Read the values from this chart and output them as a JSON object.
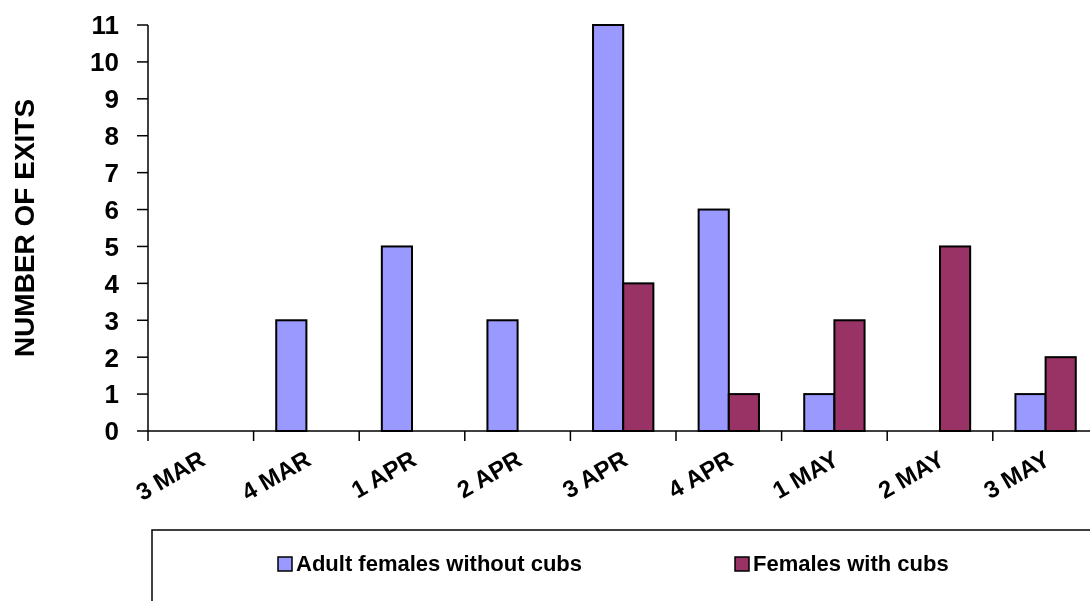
{
  "chart_data": {
    "type": "bar",
    "ylabel": "NUMBER OF EXITS",
    "categories": [
      "3 MAR",
      "4 MAR",
      "1 APR",
      "2 APR",
      "3 APR",
      "4 APR",
      "1 MAY",
      "2 MAY",
      "3 MAY"
    ],
    "series": [
      {
        "name": "Adult females without cubs",
        "color": "#9999ff",
        "values": [
          0,
          3,
          5,
          3,
          11,
          6,
          1,
          0,
          1
        ]
      },
      {
        "name": "Females with cubs",
        "color": "#993366",
        "values": [
          0,
          0,
          0,
          0,
          4,
          1,
          3,
          5,
          2
        ]
      }
    ],
    "ylim": [
      0,
      11
    ],
    "yticks": [
      0,
      1,
      2,
      3,
      4,
      5,
      6,
      7,
      8,
      9,
      10,
      11
    ],
    "grid": false,
    "legend": "bottom"
  }
}
